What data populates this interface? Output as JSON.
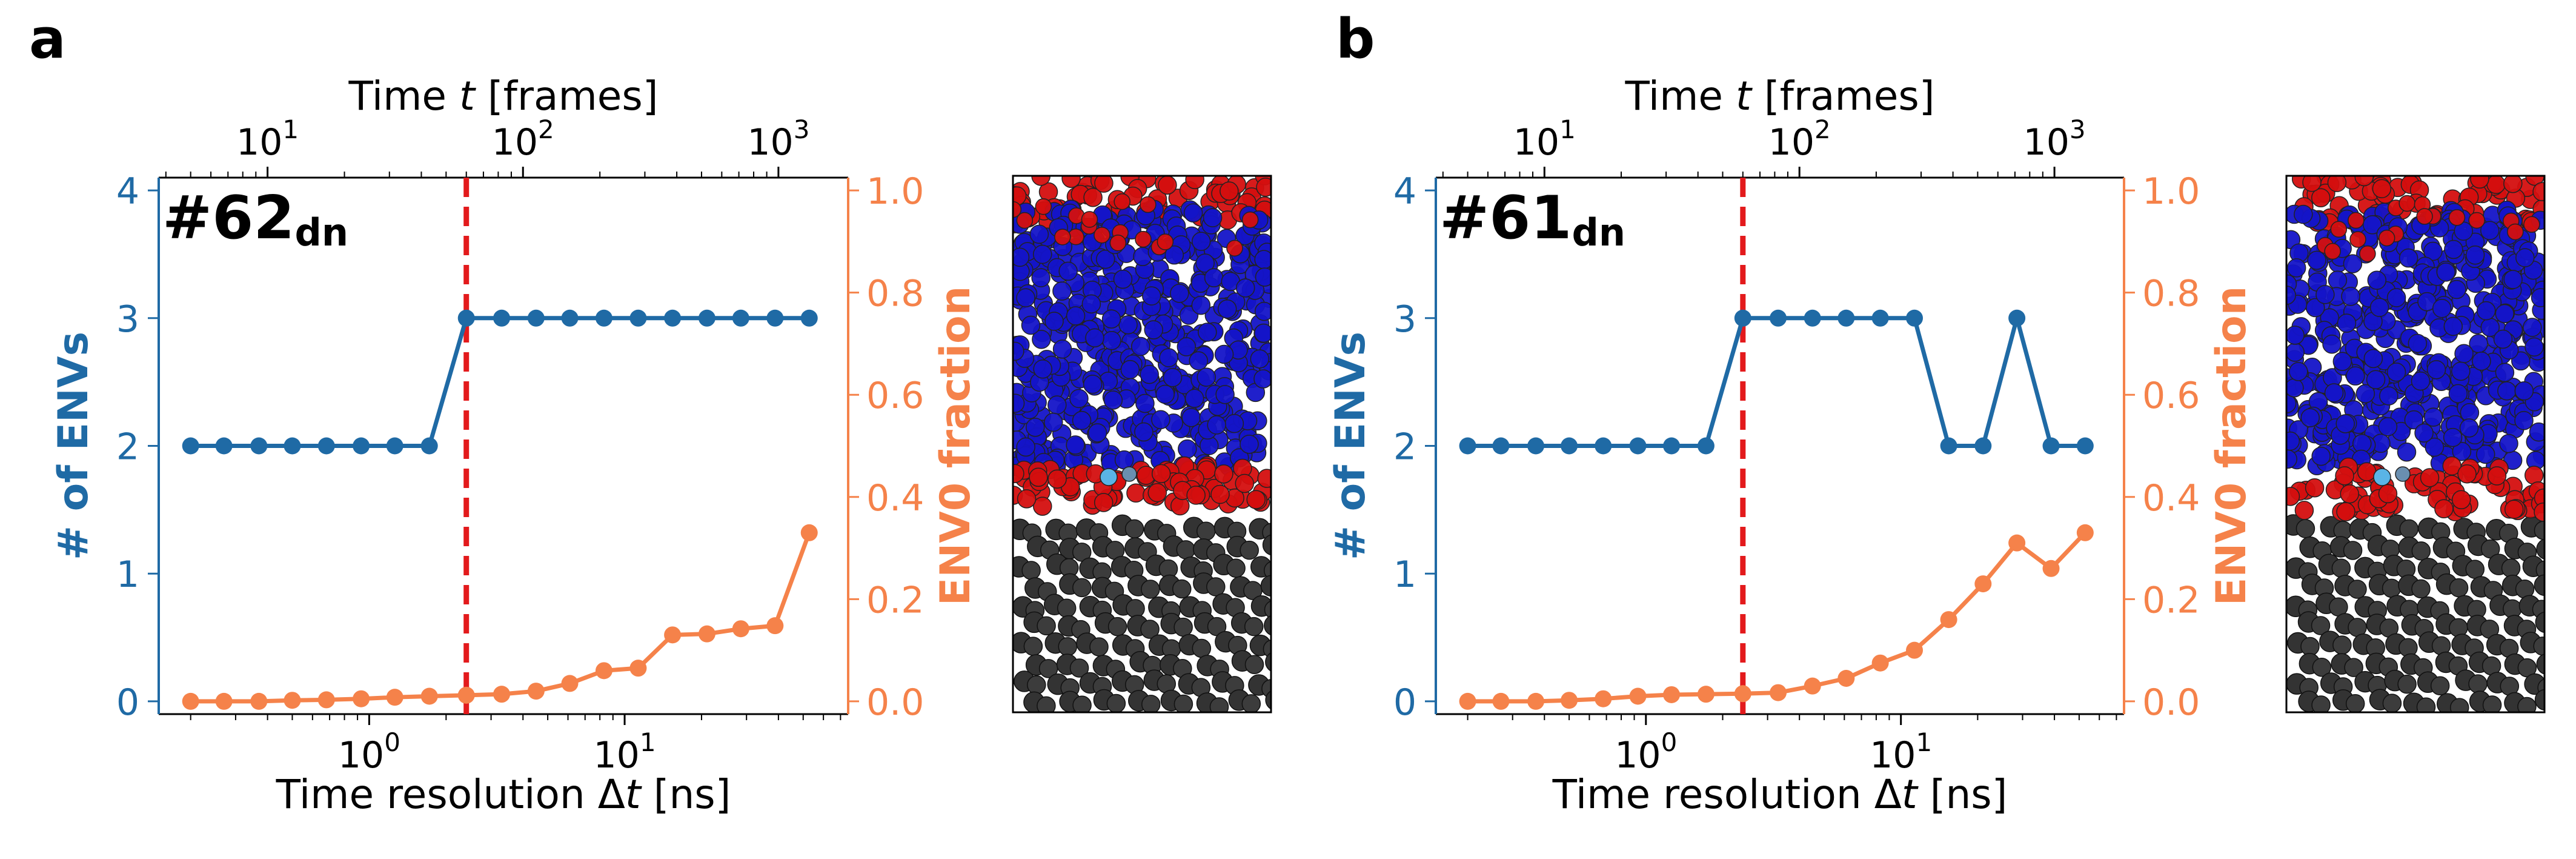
{
  "colors": {
    "left_axis": "#1f6aa5",
    "right_axis": "#f5824a",
    "marker_line": "#e31a1c",
    "atom_red": "#d40f0f",
    "atom_blue": "#1414c8",
    "atom_black": "#333333",
    "atom_cyan": "#5ab4e6"
  },
  "chart_data": [
    {
      "type": "line",
      "panel_label": "a",
      "annotation": {
        "main": "#62",
        "sub": "dn"
      },
      "xlabel": "Time resolution Δt [ns]",
      "xlabel_parts": [
        "Time resolution Δ",
        "t",
        " [ns]"
      ],
      "xscale": "log",
      "xlim": [
        0.15,
        75
      ],
      "x_ticks": [
        "10⁰",
        "10¹"
      ],
      "top_xlabel": "Time t [frames]",
      "top_xlabel_parts": [
        "Time ",
        "t",
        " [frames]"
      ],
      "top_ticks": [
        "10¹",
        "10²",
        "10³"
      ],
      "ylabel_left": "# of ENVs",
      "ylim_left": [
        -0.1,
        4.1
      ],
      "yticks_left": [
        "0",
        "1",
        "2",
        "3",
        "4"
      ],
      "ylabel_right": "ENV0 fraction",
      "ylim_right": [
        -0.025,
        1.025
      ],
      "yticks_right": [
        "0.0",
        "0.2",
        "0.4",
        "0.6",
        "0.8",
        "1.0"
      ],
      "vline_x": 2.4,
      "x": [
        0.2,
        0.27,
        0.37,
        0.5,
        0.68,
        0.93,
        1.26,
        1.72,
        2.4,
        3.3,
        4.5,
        6.1,
        8.3,
        11.3,
        15.4,
        21.0,
        28.5,
        38.8,
        52.8
      ],
      "series": [
        {
          "name": "# of ENVs",
          "axis": "left",
          "values": [
            2,
            2,
            2,
            2,
            2,
            2,
            2,
            2,
            3,
            3,
            3,
            3,
            3,
            3,
            3,
            3,
            3,
            3,
            3
          ]
        },
        {
          "name": "ENV0 fraction",
          "axis": "right",
          "values": [
            0.0,
            0.0,
            0.0,
            0.002,
            0.003,
            0.005,
            0.008,
            0.01,
            0.012,
            0.014,
            0.02,
            0.035,
            0.06,
            0.065,
            0.13,
            0.132,
            0.142,
            0.148,
            0.33
          ]
        }
      ]
    },
    {
      "type": "line",
      "panel_label": "b",
      "annotation": {
        "main": "#61",
        "sub": "dn"
      },
      "xlabel": "Time resolution Δt [ns]",
      "xlabel_parts": [
        "Time resolution Δ",
        "t",
        " [ns]"
      ],
      "xscale": "log",
      "xlim": [
        0.15,
        75
      ],
      "x_ticks": [
        "10⁰",
        "10¹"
      ],
      "top_xlabel": "Time t [frames]",
      "top_xlabel_parts": [
        "Time ",
        "t",
        " [frames]"
      ],
      "top_ticks": [
        "10¹",
        "10²",
        "10³"
      ],
      "ylabel_left": "# of ENVs",
      "ylim_left": [
        -0.1,
        4.1
      ],
      "yticks_left": [
        "0",
        "1",
        "2",
        "3",
        "4"
      ],
      "ylabel_right": "ENV0 fraction",
      "ylim_right": [
        -0.025,
        1.025
      ],
      "yticks_right": [
        "0.0",
        "0.2",
        "0.4",
        "0.6",
        "0.8",
        "1.0"
      ],
      "vline_x": 2.4,
      "x": [
        0.2,
        0.27,
        0.37,
        0.5,
        0.68,
        0.93,
        1.26,
        1.72,
        2.4,
        3.3,
        4.5,
        6.1,
        8.3,
        11.3,
        15.4,
        21.0,
        28.5,
        38.8,
        52.8
      ],
      "series": [
        {
          "name": "# of ENVs",
          "axis": "left",
          "values": [
            2,
            2,
            2,
            2,
            2,
            2,
            2,
            2,
            3,
            3,
            3,
            3,
            3,
            3,
            2,
            2,
            3,
            2,
            2
          ]
        },
        {
          "name": "ENV0 fraction",
          "axis": "right",
          "values": [
            0.0,
            0.0,
            0.0,
            0.002,
            0.005,
            0.01,
            0.013,
            0.014,
            0.015,
            0.017,
            0.03,
            0.045,
            0.075,
            0.1,
            0.16,
            0.23,
            0.31,
            0.26,
            0.33
          ]
        }
      ]
    }
  ]
}
